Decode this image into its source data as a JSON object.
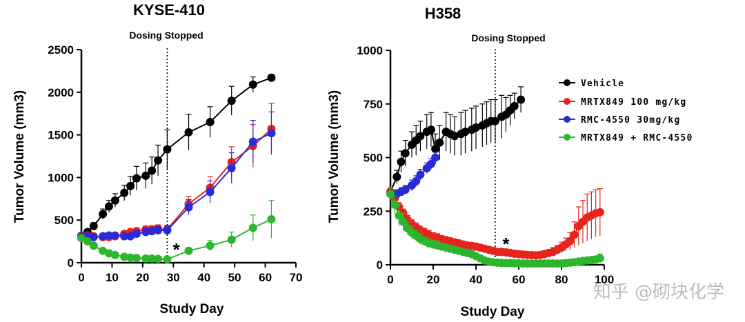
{
  "watermark": "知乎 @砌块化学",
  "legend": [
    {
      "label": "Vehicle",
      "color": "#000000"
    },
    {
      "label": "MRTX849 100 mg/kg",
      "color": "#e8231d"
    },
    {
      "label": "RMC-4550 30mg/kg",
      "color": "#2a2ad8"
    },
    {
      "label": "MRTX849 + RMC-4550",
      "color": "#2db52d"
    }
  ],
  "chart_data": [
    {
      "type": "line",
      "title": "KYSE-410",
      "xlabel": "Study Day",
      "ylabel": "Tumor Volume (mm3)",
      "xlim": [
        0,
        70
      ],
      "ylim": [
        0,
        2500
      ],
      "xticks": [
        "0",
        "10",
        "20",
        "30",
        "40",
        "50",
        "60",
        "70"
      ],
      "yticks": [
        "0",
        "500",
        "1000",
        "1500",
        "2000",
        "2500"
      ],
      "annotations": {
        "dosing_stopped_label": "Dosing Stopped",
        "dosing_stopped_day": 28,
        "star": "*",
        "star_x": 31,
        "star_y": 160
      },
      "series": [
        {
          "name": "Vehicle",
          "color": "#000000",
          "x": [
            0,
            2,
            4,
            7,
            9,
            11,
            14,
            16,
            18,
            21,
            23,
            25,
            28,
            35,
            42,
            49,
            56,
            62
          ],
          "y": [
            310,
            360,
            430,
            570,
            660,
            730,
            820,
            900,
            990,
            1020,
            1080,
            1200,
            1330,
            1530,
            1650,
            1900,
            2090,
            2170
          ],
          "err": [
            20,
            30,
            40,
            60,
            70,
            80,
            90,
            110,
            140,
            150,
            160,
            180,
            230,
            210,
            180,
            170,
            90,
            40
          ]
        },
        {
          "name": "MRTX849 100 mg/kg",
          "color": "#e8231d",
          "x": [
            0,
            2,
            4,
            7,
            9,
            11,
            14,
            16,
            18,
            21,
            23,
            25,
            28,
            35,
            42,
            49,
            56,
            62
          ],
          "y": [
            320,
            320,
            310,
            300,
            300,
            310,
            340,
            360,
            370,
            390,
            390,
            400,
            390,
            690,
            880,
            1180,
            1370,
            1570
          ],
          "err": [
            15,
            15,
            20,
            20,
            25,
            30,
            30,
            35,
            40,
            40,
            45,
            45,
            50,
            90,
            130,
            180,
            250,
            300
          ]
        },
        {
          "name": "RMC-4550 30mg/kg",
          "color": "#2a2ad8",
          "x": [
            0,
            2,
            4,
            7,
            9,
            11,
            14,
            16,
            18,
            21,
            23,
            25,
            28,
            35,
            42,
            49,
            56,
            62
          ],
          "y": [
            310,
            310,
            300,
            310,
            320,
            320,
            310,
            310,
            340,
            360,
            370,
            380,
            380,
            650,
            830,
            1110,
            1420,
            1520
          ],
          "err": [
            15,
            15,
            20,
            20,
            25,
            30,
            30,
            35,
            40,
            40,
            45,
            45,
            50,
            90,
            130,
            180,
            250,
            250
          ]
        },
        {
          "name": "MRTX849 + RMC-4550",
          "color": "#2db52d",
          "x": [
            0,
            2,
            4,
            7,
            9,
            11,
            14,
            16,
            18,
            21,
            23,
            25,
            28,
            35,
            42,
            49,
            56,
            62
          ],
          "y": [
            290,
            250,
            200,
            140,
            110,
            90,
            70,
            60,
            55,
            50,
            50,
            45,
            40,
            140,
            200,
            270,
            410,
            510
          ],
          "err": [
            20,
            20,
            20,
            15,
            15,
            15,
            10,
            10,
            10,
            10,
            10,
            10,
            10,
            30,
            60,
            90,
            150,
            220
          ]
        }
      ]
    },
    {
      "type": "line",
      "title": "H358",
      "xlabel": "Study Day",
      "ylabel": "Tumor Volume (mm3)",
      "xlim": [
        0,
        100
      ],
      "ylim": [
        0,
        1000
      ],
      "xticks": [
        "0",
        "20",
        "40",
        "60",
        "80",
        "100"
      ],
      "yticks": [
        "0",
        "250",
        "500",
        "750",
        "1000"
      ],
      "annotations": {
        "dosing_stopped_label": "Dosing Stopped",
        "dosing_stopped_day": 49,
        "star": "*",
        "star_x": 54,
        "star_y": 100
      },
      "series": [
        {
          "name": "Vehicle",
          "color": "#000000",
          "x": [
            0,
            3,
            5,
            7,
            10,
            12,
            14,
            17,
            19,
            21,
            23,
            26,
            28,
            30,
            33,
            35,
            38,
            40,
            43,
            45,
            47,
            49,
            52,
            54,
            56,
            58,
            61
          ],
          "y": [
            340,
            410,
            480,
            520,
            560,
            580,
            600,
            620,
            630,
            540,
            570,
            620,
            610,
            600,
            610,
            620,
            630,
            640,
            650,
            660,
            670,
            670,
            690,
            700,
            720,
            740,
            770
          ],
          "err": [
            20,
            30,
            50,
            60,
            60,
            70,
            70,
            80,
            80,
            70,
            80,
            90,
            90,
            90,
            100,
            100,
            100,
            100,
            100,
            100,
            100,
            100,
            100,
            80,
            70,
            60,
            60
          ]
        },
        {
          "name": "MRTX849 100 mg/kg",
          "color": "#e8231d",
          "x": [
            0,
            2,
            4,
            6,
            8,
            10,
            12,
            14,
            16,
            18,
            20,
            22,
            24,
            26,
            28,
            30,
            32,
            34,
            36,
            38,
            40,
            42,
            44,
            46,
            48,
            50,
            52,
            54,
            56,
            58,
            60,
            62,
            64,
            66,
            68,
            70,
            72,
            74,
            76,
            78,
            80,
            82,
            84,
            86,
            88,
            90,
            92,
            94,
            96,
            98
          ],
          "y": [
            340,
            310,
            270,
            240,
            210,
            190,
            175,
            160,
            150,
            140,
            130,
            125,
            120,
            115,
            110,
            105,
            100,
            95,
            90,
            88,
            85,
            80,
            75,
            70,
            65,
            60,
            60,
            58,
            55,
            52,
            50,
            48,
            46,
            45,
            44,
            46,
            50,
            55,
            60,
            70,
            80,
            95,
            110,
            140,
            180,
            200,
            220,
            230,
            240,
            245
          ],
          "err": [
            20,
            20,
            20,
            20,
            20,
            20,
            20,
            20,
            20,
            20,
            20,
            20,
            15,
            15,
            15,
            15,
            15,
            15,
            15,
            15,
            15,
            15,
            15,
            15,
            15,
            15,
            15,
            15,
            15,
            15,
            15,
            15,
            15,
            15,
            15,
            15,
            15,
            15,
            20,
            20,
            25,
            30,
            40,
            60,
            90,
            100,
            110,
            110,
            110,
            110
          ]
        },
        {
          "name": "RMC-4550 30mg/kg",
          "color": "#2a2ad8",
          "x": [
            0,
            3,
            5,
            7,
            10,
            12,
            14,
            17,
            19,
            21
          ],
          "y": [
            330,
            330,
            340,
            350,
            370,
            390,
            420,
            450,
            470,
            500
          ],
          "err": [
            20,
            20,
            20,
            20,
            25,
            25,
            25,
            25,
            25,
            25
          ]
        },
        {
          "name": "MRTX849 + RMC-4550",
          "color": "#2db52d",
          "x": [
            0,
            2,
            4,
            6,
            8,
            10,
            12,
            14,
            16,
            18,
            20,
            22,
            24,
            26,
            28,
            30,
            32,
            34,
            36,
            38,
            40,
            42,
            44,
            46,
            48,
            50,
            52,
            54,
            56,
            58,
            60,
            62,
            64,
            66,
            68,
            70,
            72,
            74,
            76,
            78,
            80,
            82,
            84,
            86,
            88,
            90,
            92,
            94,
            96,
            98
          ],
          "y": [
            330,
            280,
            230,
            200,
            170,
            150,
            135,
            120,
            110,
            100,
            95,
            90,
            85,
            80,
            75,
            70,
            65,
            60,
            55,
            50,
            40,
            30,
            20,
            15,
            12,
            10,
            9,
            8,
            8,
            7,
            7,
            6,
            6,
            6,
            6,
            6,
            6,
            6,
            6,
            6,
            6,
            8,
            10,
            12,
            15,
            18,
            20,
            22,
            25,
            30
          ],
          "err": [
            30,
            40,
            50,
            40,
            30,
            30,
            25,
            25,
            20,
            20,
            20,
            20,
            15,
            15,
            15,
            15,
            15,
            15,
            15,
            15,
            15,
            10,
            10,
            8,
            8,
            5,
            5,
            5,
            5,
            5,
            5,
            5,
            5,
            5,
            5,
            5,
            5,
            5,
            5,
            5,
            5,
            5,
            5,
            5,
            10,
            10,
            10,
            15,
            15,
            20
          ]
        }
      ]
    }
  ]
}
